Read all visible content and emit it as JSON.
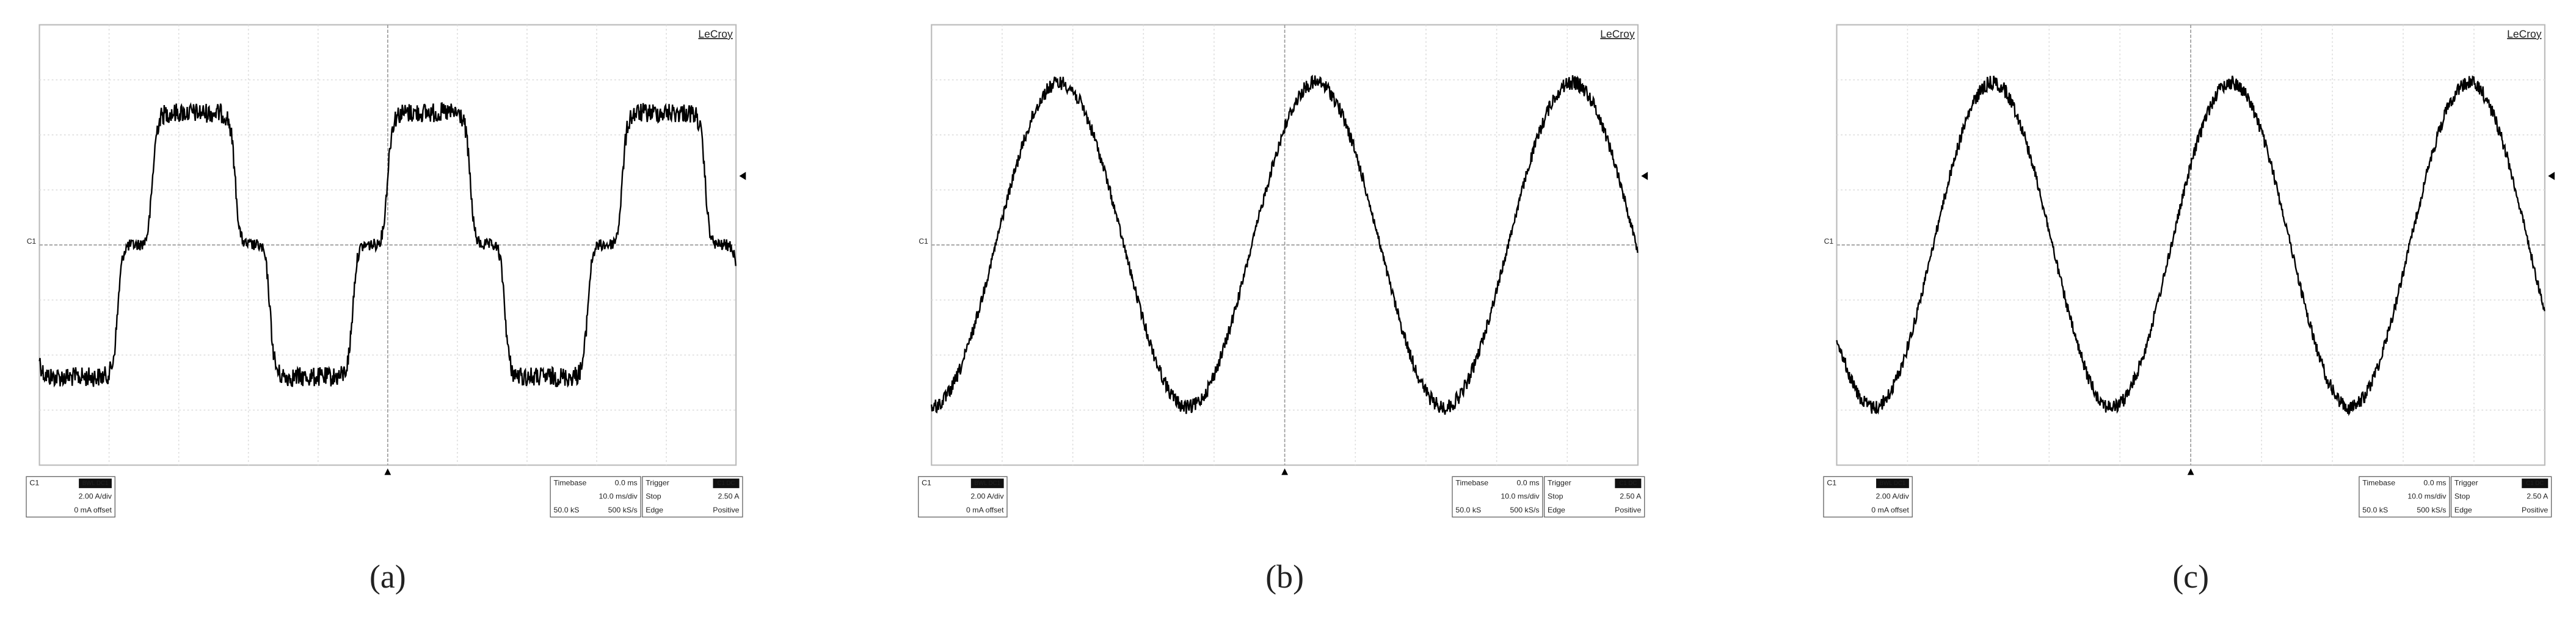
{
  "panels": [
    {
      "label": "(a)",
      "brand": "LeCroy",
      "marker": "C1",
      "channel": {
        "name": "C1",
        "coupling": "BWL DC1",
        "scale": "2.00 A/div",
        "offset": "0 mA offset"
      },
      "timebase": {
        "title": "Timebase",
        "delay": "0.0 ms",
        "scale": "10.0 ms/div",
        "samples": "50.0 kS",
        "rate": "500 kS/s"
      },
      "trigger": {
        "title": "Trigger",
        "source": "C1 DC",
        "mode": "Stop",
        "level": "2.50 A",
        "type": "Edge",
        "slope": "Positive"
      }
    },
    {
      "label": "(b)",
      "brand": "LeCroy",
      "marker": "C1",
      "channel": {
        "name": "C1",
        "coupling": "BWL DC1",
        "scale": "2.00 A/div",
        "offset": "0 mA offset"
      },
      "timebase": {
        "title": "Timebase",
        "delay": "0.0 ms",
        "scale": "10.0 ms/div",
        "samples": "50.0 kS",
        "rate": "500 kS/s"
      },
      "trigger": {
        "title": "Trigger",
        "source": "C1 DC",
        "mode": "Stop",
        "level": "2.50 A",
        "type": "Edge",
        "slope": "Positive"
      }
    },
    {
      "label": "(c)",
      "brand": "LeCroy",
      "marker": "C1",
      "channel": {
        "name": "C1",
        "coupling": "BWL DC1",
        "scale": "2.00 A/div",
        "offset": "0 mA offset"
      },
      "timebase": {
        "title": "Timebase",
        "delay": "0.0 ms",
        "scale": "10.0 ms/div",
        "samples": "50.0 kS",
        "rate": "500 kS/s"
      },
      "trigger": {
        "title": "Trigger",
        "source": "C1 DC",
        "mode": "Stop",
        "level": "2.50 A",
        "type": "Edge",
        "slope": "Positive"
      }
    }
  ]
}
